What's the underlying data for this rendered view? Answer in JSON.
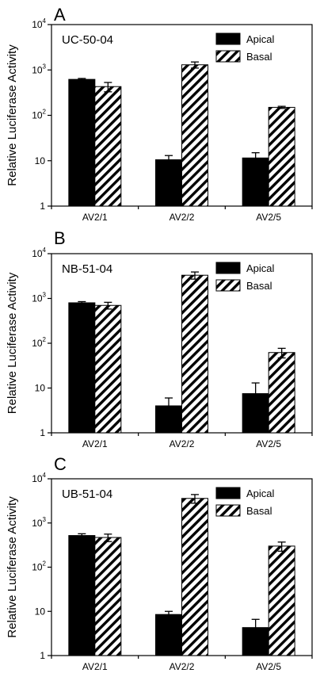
{
  "chart_data": [
    {
      "type": "bar",
      "panel": "A",
      "sample": "UC-50-04",
      "ylabel": "Relative Luciferase Activity",
      "yscale": "log",
      "ylim": [
        1,
        10000
      ],
      "yticks": [
        {
          "base": "1",
          "exp": ""
        },
        {
          "base": "10",
          "exp": ""
        },
        {
          "base": "10",
          "exp": "2"
        },
        {
          "base": "10",
          "exp": "3"
        },
        {
          "base": "10",
          "exp": "4"
        }
      ],
      "categories": [
        "AV2/1",
        "AV2/2",
        "AV2/5"
      ],
      "series": [
        {
          "name": "Apical",
          "pattern": "solid",
          "values": [
            620,
            10.5,
            11.5
          ],
          "errors": [
            30,
            2.5,
            3.5
          ]
        },
        {
          "name": "Basal",
          "pattern": "hatch",
          "values": [
            430,
            1300,
            150
          ],
          "errors": [
            100,
            200,
            8
          ]
        }
      ],
      "legend": "top-right"
    },
    {
      "type": "bar",
      "panel": "B",
      "sample": "NB-51-04",
      "ylabel": "Relative Luciferase Activity",
      "yscale": "log",
      "ylim": [
        1,
        10000
      ],
      "yticks": [
        {
          "base": "1",
          "exp": ""
        },
        {
          "base": "10",
          "exp": ""
        },
        {
          "base": "10",
          "exp": "2"
        },
        {
          "base": "10",
          "exp": "3"
        },
        {
          "base": "10",
          "exp": "4"
        }
      ],
      "categories": [
        "AV2/1",
        "AV2/2",
        "AV2/5"
      ],
      "series": [
        {
          "name": "Apical",
          "pattern": "solid",
          "values": [
            800,
            4,
            7.5
          ],
          "errors": [
            50,
            2,
            5.5
          ]
        },
        {
          "name": "Basal",
          "pattern": "hatch",
          "values": [
            700,
            3300,
            62
          ],
          "errors": [
            120,
            600,
            15
          ]
        }
      ],
      "legend": "top-right"
    },
    {
      "type": "bar",
      "panel": "C",
      "sample": "UB-51-04",
      "ylabel": "Relative Luciferase Activity",
      "yscale": "log",
      "ylim": [
        1,
        10000
      ],
      "yticks": [
        {
          "base": "1",
          "exp": ""
        },
        {
          "base": "10",
          "exp": ""
        },
        {
          "base": "10",
          "exp": "2"
        },
        {
          "base": "10",
          "exp": "3"
        },
        {
          "base": "10",
          "exp": "4"
        }
      ],
      "categories": [
        "AV2/1",
        "AV2/2",
        "AV2/5"
      ],
      "series": [
        {
          "name": "Apical",
          "pattern": "solid",
          "values": [
            520,
            8.5,
            4.3
          ],
          "errors": [
            50,
            1.5,
            2.3
          ]
        },
        {
          "name": "Basal",
          "pattern": "hatch",
          "values": [
            470,
            3600,
            300
          ],
          "errors": [
            90,
            800,
            70
          ]
        }
      ],
      "legend": "top-right"
    }
  ],
  "colors": {
    "bar": "#000000",
    "background": "#ffffff"
  }
}
